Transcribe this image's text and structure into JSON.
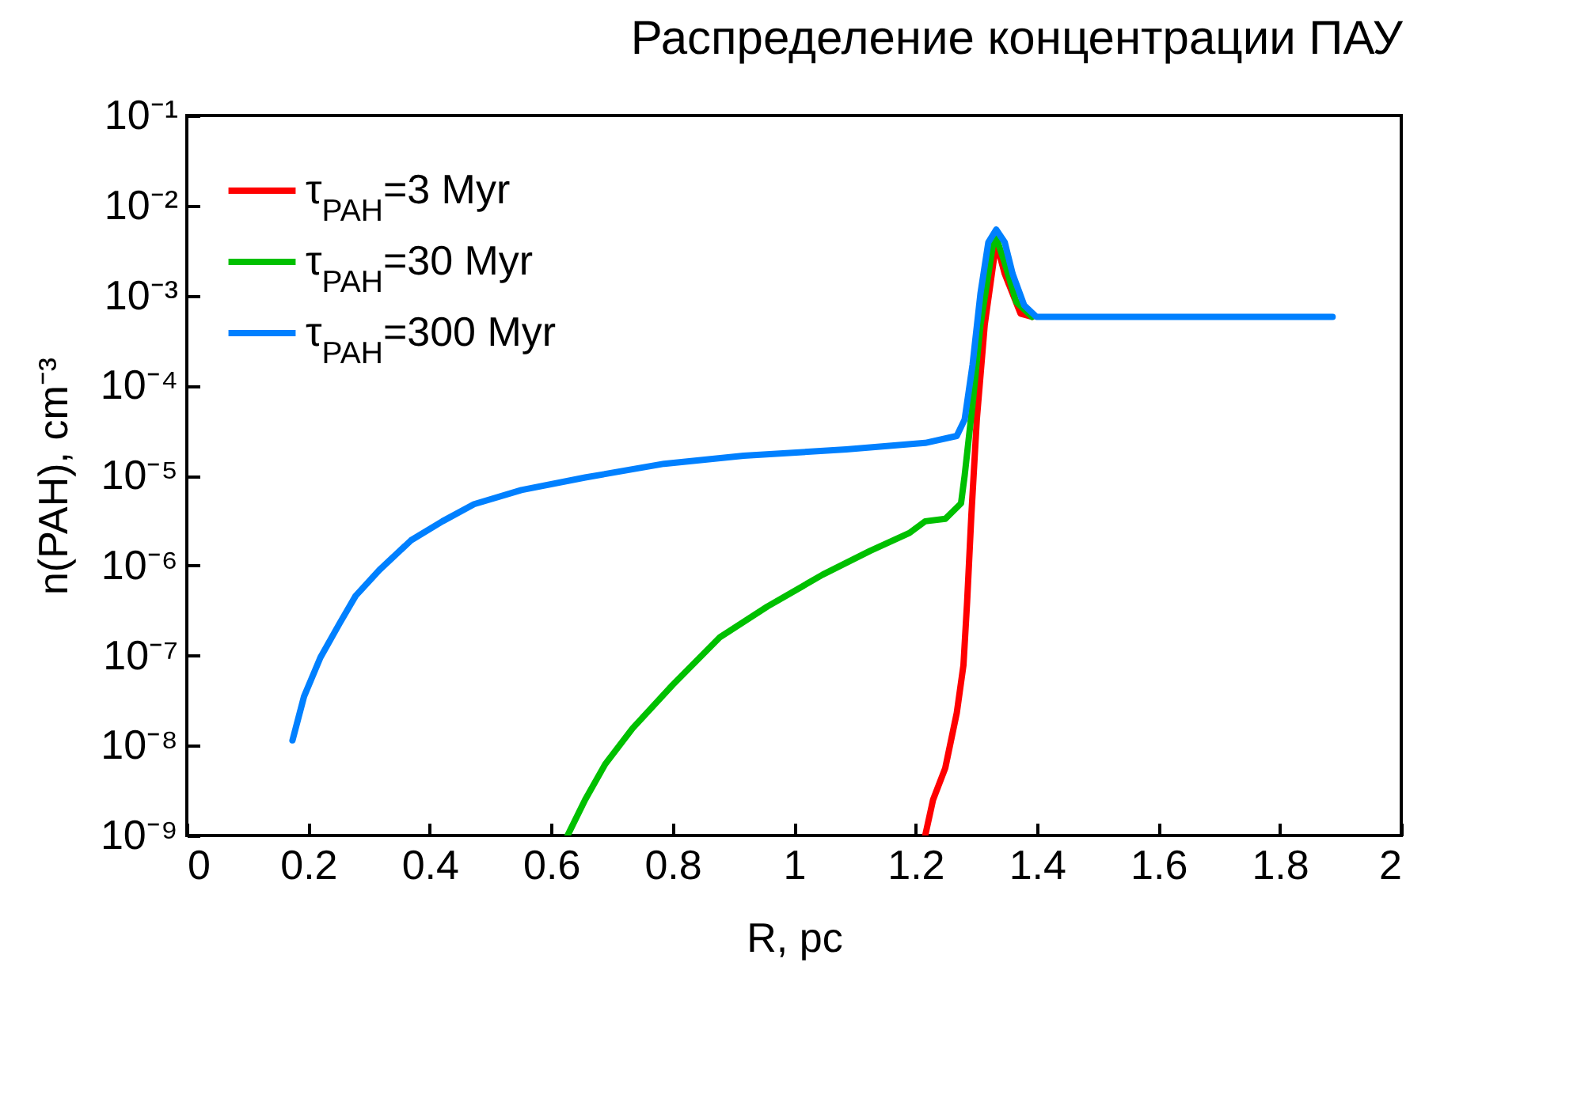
{
  "chart_data": {
    "type": "line",
    "title": "Распределение концентрации ПАУ",
    "xlabel": "R, pc",
    "ylabel": "n(PAH), cm⁻³",
    "log": "y",
    "xlim": [
      0,
      2
    ],
    "xticks": [
      0,
      0.2,
      0.4,
      0.6,
      0.8,
      1,
      1.2,
      1.4,
      1.6,
      1.8,
      2
    ],
    "ylim": [
      1e-09,
      0.1
    ],
    "yticks": [
      {
        "value": 1e-09,
        "label": "10⁻⁹"
      },
      {
        "value": 1e-08,
        "label": "10⁻⁸"
      },
      {
        "value": 1e-07,
        "label": "10⁻⁷"
      },
      {
        "value": 1e-06,
        "label": "10⁻⁶"
      },
      {
        "value": 1e-05,
        "label": "10⁻⁵"
      },
      {
        "value": 0.0001,
        "label": "10⁻⁴"
      },
      {
        "value": 0.001,
        "label": "10⁻³"
      },
      {
        "value": 0.01,
        "label": "10⁻²"
      },
      {
        "value": 0.1,
        "label": "10⁻¹"
      }
    ],
    "grid": false,
    "legend": "top left",
    "line_style": "solid",
    "series": [
      {
        "name": "τ$_{PAH}$=3 Myr",
        "color": "#ff0000",
        "x": [
          1.216,
          1.229,
          1.249,
          1.268,
          1.279,
          1.285,
          1.292,
          1.301,
          1.314,
          1.333,
          1.347,
          1.373,
          1.392
        ],
        "values": [
          1e-09,
          2.5e-09,
          5.6e-09,
          2.3e-08,
          7.8e-08,
          3.9e-07,
          3.6e-06,
          4.2e-05,
          0.00047,
          0.0039,
          0.00174,
          0.00063,
          0.00058
        ]
      },
      {
        "name": "τ$_{PAH}$=30 Myr",
        "color": "#00c000",
        "x": [
          0.627,
          0.656,
          0.689,
          0.734,
          0.8,
          0.878,
          0.956,
          1.047,
          1.125,
          1.19,
          1.216,
          1.249,
          1.275,
          1.281,
          1.294,
          1.307,
          1.327,
          1.333,
          1.347,
          1.366,
          1.392
        ],
        "values": [
          1e-09,
          2.5e-09,
          6.2e-09,
          1.55e-08,
          4.7e-08,
          1.6e-07,
          3.5e-07,
          7.9e-07,
          1.45e-06,
          2.3e-06,
          3.1e-06,
          3.3e-06,
          4.9e-06,
          1e-05,
          6.2e-05,
          0.00047,
          0.0035,
          0.0044,
          0.0023,
          0.00085,
          0.00058
        ]
      },
      {
        "name": "τ$_{PAH}$=300 Myr",
        "color": "#0080ff",
        "x": [
          0.174,
          0.193,
          0.22,
          0.252,
          0.278,
          0.317,
          0.369,
          0.421,
          0.473,
          0.551,
          0.656,
          0.786,
          0.917,
          1.086,
          1.216,
          1.268,
          1.281,
          1.294,
          1.307,
          1.32,
          1.333,
          1.347,
          1.36,
          1.379,
          1.399,
          1.887
        ],
        "values": [
          1.14e-08,
          3.5e-08,
          9.5e-08,
          2.3e-07,
          4.6e-07,
          8.9e-07,
          1.9e-06,
          3.1e-06,
          4.8e-06,
          6.9e-06,
          9.5e-06,
          1.35e-05,
          1.66e-05,
          1.95e-05,
          2.3e-05,
          2.75e-05,
          4.2e-05,
          0.00017,
          0.00105,
          0.0039,
          0.0054,
          0.0039,
          0.00174,
          0.00078,
          0.00058,
          0.00058
        ]
      }
    ]
  }
}
